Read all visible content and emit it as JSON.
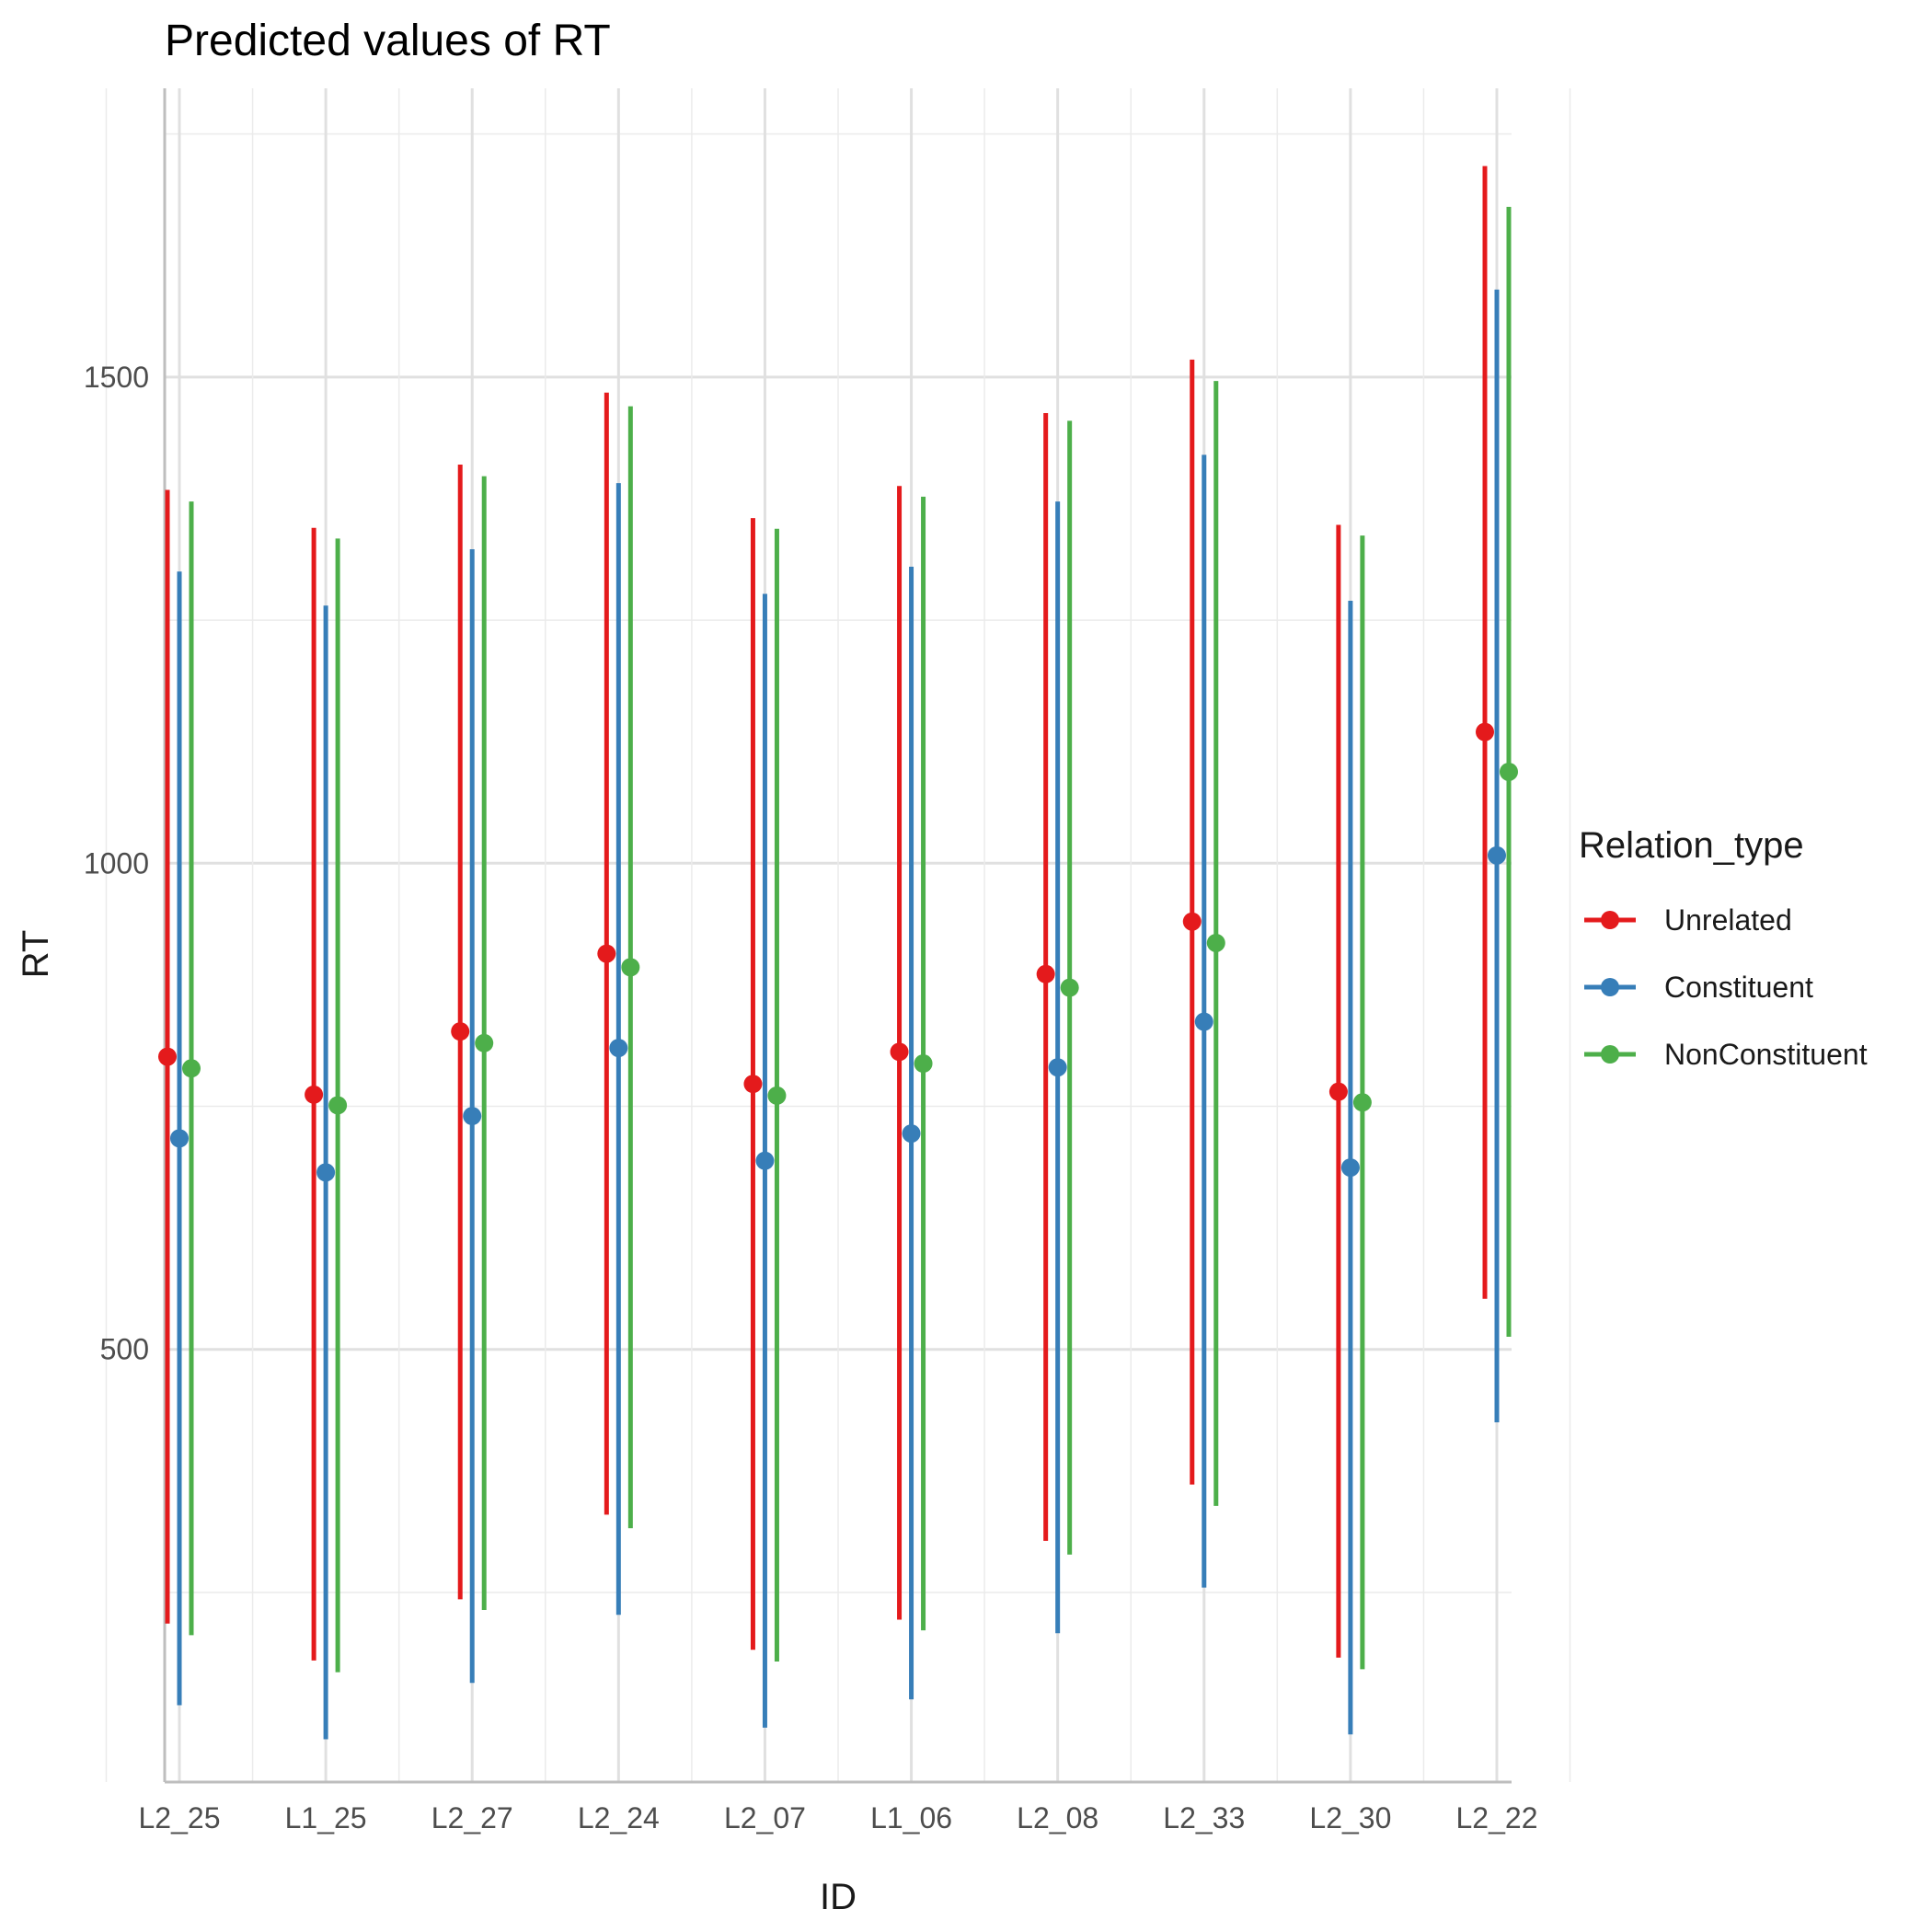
{
  "chart_data": {
    "type": "scatter",
    "title": "Predicted values of RT",
    "xlabel": "ID",
    "ylabel": "RT",
    "categories": [
      "L2_25",
      "L1_25",
      "L2_27",
      "L2_24",
      "L2_07",
      "L1_06",
      "L2_08",
      "L2_33",
      "L2_30",
      "L2_22"
    ],
    "ylim": [
      55,
      1797
    ],
    "yticks": [
      500,
      1000,
      1500
    ],
    "grid": true,
    "legend_title": "Relation_type",
    "legend_position": "right",
    "series": [
      {
        "name": "Unrelated",
        "color": "#e41a1c",
        "values": [
          801,
          762,
          827,
          907,
          773,
          806,
          886,
          940,
          765,
          1135
        ],
        "lower": [
          218,
          180,
          243,
          330,
          191,
          222,
          303,
          361,
          183,
          552
        ],
        "upper": [
          1384,
          1345,
          1410,
          1484,
          1355,
          1388,
          1463,
          1518,
          1348,
          1717
        ]
      },
      {
        "name": "Constituent",
        "color": "#377eb8",
        "values": [
          717,
          682,
          740,
          810,
          694,
          722,
          790,
          837,
          687,
          1008
        ],
        "lower": [
          134,
          99,
          157,
          227,
          111,
          140,
          208,
          255,
          104,
          425
        ],
        "upper": [
          1300,
          1265,
          1323,
          1391,
          1277,
          1305,
          1372,
          1420,
          1270,
          1590
        ]
      },
      {
        "name": "NonConstituent",
        "color": "#4daf4a",
        "values": [
          789,
          751,
          815,
          893,
          761,
          794,
          872,
          918,
          754,
          1094
        ],
        "lower": [
          206,
          168,
          232,
          316,
          179,
          211,
          289,
          339,
          171,
          513
        ],
        "upper": [
          1372,
          1334,
          1398,
          1470,
          1344,
          1377,
          1455,
          1496,
          1337,
          1675
        ]
      }
    ]
  }
}
